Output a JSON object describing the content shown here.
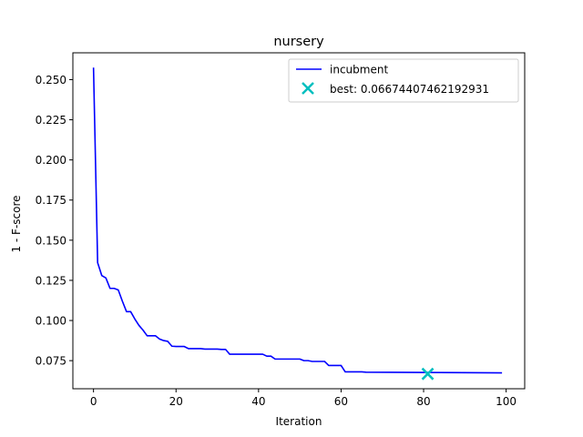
{
  "chart_data": {
    "type": "line",
    "title": "nursery",
    "xlabel": "Iteration",
    "ylabel": "1 - F-score",
    "xlim": [
      -5,
      104.5
    ],
    "ylim": [
      0.0575,
      0.2667
    ],
    "xticks": [
      0,
      20,
      40,
      60,
      80,
      100
    ],
    "yticks": [
      0.075,
      0.1,
      0.125,
      0.15,
      0.175,
      0.2,
      0.225,
      0.25
    ],
    "xtick_labels": [
      "0",
      "20",
      "40",
      "60",
      "80",
      "100"
    ],
    "ytick_labels": [
      "0.075",
      "0.100",
      "0.125",
      "0.150",
      "0.175",
      "0.200",
      "0.225",
      "0.250"
    ],
    "grid": false,
    "legend_position": "top-right",
    "series": [
      {
        "name": "incubment",
        "color": "#0000ff",
        "points": [
          [
            0,
            0.2575
          ],
          [
            1,
            0.136
          ],
          [
            2,
            0.128
          ],
          [
            3,
            0.1265
          ],
          [
            4,
            0.12
          ],
          [
            5,
            0.12
          ],
          [
            6,
            0.119
          ],
          [
            7,
            0.112
          ],
          [
            8,
            0.1055
          ],
          [
            9,
            0.1055
          ],
          [
            10,
            0.101
          ],
          [
            11,
            0.097
          ],
          [
            12,
            0.094
          ],
          [
            13,
            0.0905
          ],
          [
            14,
            0.0905
          ],
          [
            15,
            0.0905
          ],
          [
            16,
            0.0885
          ],
          [
            17,
            0.0875
          ],
          [
            18,
            0.087
          ],
          [
            19,
            0.084
          ],
          [
            20,
            0.0838
          ],
          [
            21,
            0.0838
          ],
          [
            22,
            0.0838
          ],
          [
            23,
            0.0825
          ],
          [
            24,
            0.0825
          ],
          [
            25,
            0.0825
          ],
          [
            26,
            0.0825
          ],
          [
            27,
            0.0822
          ],
          [
            28,
            0.0822
          ],
          [
            29,
            0.0822
          ],
          [
            30,
            0.0822
          ],
          [
            31,
            0.082
          ],
          [
            32,
            0.082
          ],
          [
            33,
            0.079
          ],
          [
            34,
            0.079
          ],
          [
            35,
            0.079
          ],
          [
            36,
            0.079
          ],
          [
            37,
            0.079
          ],
          [
            38,
            0.079
          ],
          [
            39,
            0.079
          ],
          [
            40,
            0.079
          ],
          [
            41,
            0.079
          ],
          [
            42,
            0.0778
          ],
          [
            43,
            0.0778
          ],
          [
            44,
            0.076
          ],
          [
            45,
            0.076
          ],
          [
            46,
            0.076
          ],
          [
            47,
            0.076
          ],
          [
            48,
            0.076
          ],
          [
            49,
            0.076
          ],
          [
            50,
            0.076
          ],
          [
            51,
            0.075
          ],
          [
            52,
            0.075
          ],
          [
            53,
            0.0745
          ],
          [
            54,
            0.0745
          ],
          [
            55,
            0.0745
          ],
          [
            56,
            0.0745
          ],
          [
            57,
            0.072
          ],
          [
            58,
            0.072
          ],
          [
            59,
            0.072
          ],
          [
            60,
            0.072
          ],
          [
            61,
            0.068
          ],
          [
            62,
            0.068
          ],
          [
            63,
            0.068
          ],
          [
            64,
            0.068
          ],
          [
            65,
            0.068
          ],
          [
            66,
            0.0678
          ],
          [
            99,
            0.0674
          ]
        ]
      }
    ],
    "best": {
      "label": "best: 0.06674407462192931",
      "x": 81,
      "y": 0.06674407462192931,
      "color": "#00bfbf",
      "marker": "x"
    }
  }
}
